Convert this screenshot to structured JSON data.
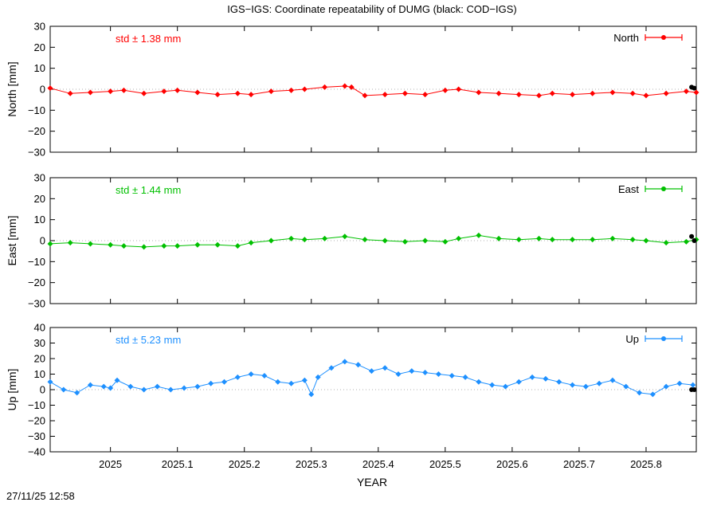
{
  "title": "IGS−IGS: Coordinate repeatability of DUMG (black: COD−IGS)",
  "timestamp": "27/11/25 12:58",
  "chart_data": [
    {
      "type": "scatter",
      "component": "North",
      "ylabel": "North [mm]",
      "xlabel": "",
      "std_label": "std ± 1.38 mm",
      "legend": "North",
      "legend_placement": "top-right",
      "color": "#ff0000",
      "ylim": [
        -30,
        30
      ],
      "yticks": [
        -30,
        -20,
        -10,
        0,
        10,
        20,
        30
      ],
      "ytick_labels": [
        "−30",
        "−20",
        "−10",
        "0",
        "10",
        "20",
        "30"
      ],
      "xlim": [
        2024.91,
        2025.875
      ],
      "zero_line": true,
      "series": [
        {
          "x": [
            2024.91,
            2024.94,
            2024.97,
            2025.0,
            2025.02,
            2025.05,
            2025.08,
            2025.1,
            2025.13,
            2025.16,
            2025.19,
            2025.21,
            2025.24,
            2025.27,
            2025.29,
            2025.32,
            2025.35,
            2025.36,
            2025.38,
            2025.41,
            2025.44,
            2025.47,
            2025.5,
            2025.52,
            2025.55,
            2025.58,
            2025.61,
            2025.64,
            2025.66,
            2025.69,
            2025.72,
            2025.75,
            2025.78,
            2025.8,
            2025.83,
            2025.86,
            2025.875
          ],
          "y": [
            0.5,
            -2,
            -1.5,
            -1,
            -0.5,
            -2,
            -1,
            -0.5,
            -1.5,
            -2.5,
            -2,
            -2.5,
            -1,
            -0.5,
            0,
            1,
            1.5,
            1,
            -3,
            -2.5,
            -2,
            -2.5,
            -0.5,
            0,
            -1.5,
            -2,
            -2.5,
            -3,
            -2,
            -2.5,
            -2,
            -1.5,
            -2,
            -3,
            -2,
            -1,
            -1.5
          ]
        }
      ],
      "black_points": {
        "x": [
          2025.868,
          2025.872
        ],
        "y": [
          1,
          0.5
        ]
      }
    },
    {
      "type": "scatter",
      "component": "East",
      "ylabel": "East [mm]",
      "xlabel": "",
      "std_label": "std ± 1.44 mm",
      "legend": "East",
      "legend_placement": "top-right",
      "color": "#00c000",
      "ylim": [
        -30,
        30
      ],
      "yticks": [
        -30,
        -20,
        -10,
        0,
        10,
        20,
        30
      ],
      "ytick_labels": [
        "−30",
        "−20",
        "−10",
        "0",
        "10",
        "20",
        "30"
      ],
      "xlim": [
        2024.91,
        2025.875
      ],
      "zero_line": true,
      "series": [
        {
          "x": [
            2024.91,
            2024.94,
            2024.97,
            2025.0,
            2025.02,
            2025.05,
            2025.08,
            2025.1,
            2025.13,
            2025.16,
            2025.19,
            2025.21,
            2025.24,
            2025.27,
            2025.29,
            2025.32,
            2025.35,
            2025.38,
            2025.41,
            2025.44,
            2025.47,
            2025.5,
            2025.52,
            2025.55,
            2025.58,
            2025.61,
            2025.64,
            2025.66,
            2025.69,
            2025.72,
            2025.75,
            2025.78,
            2025.8,
            2025.83,
            2025.86,
            2025.875
          ],
          "y": [
            -1.5,
            -1,
            -1.5,
            -2,
            -2.5,
            -3,
            -2.5,
            -2.5,
            -2,
            -2,
            -2.5,
            -1,
            0,
            1,
            0.5,
            1,
            2,
            0.5,
            0,
            -0.5,
            0,
            -0.5,
            1,
            2.5,
            1,
            0.5,
            1,
            0.5,
            0.5,
            0.5,
            1,
            0.5,
            0,
            -1,
            -0.5,
            0.5
          ]
        }
      ],
      "black_points": {
        "x": [
          2025.868,
          2025.872
        ],
        "y": [
          2,
          0
        ]
      }
    },
    {
      "type": "scatter",
      "component": "Up",
      "ylabel": "Up [mm]",
      "xlabel": "YEAR",
      "std_label": "std ± 5.23 mm",
      "legend": "Up",
      "legend_placement": "top-right",
      "color": "#1e90ff",
      "ylim": [
        -40,
        40
      ],
      "yticks": [
        -40,
        -30,
        -20,
        -10,
        0,
        10,
        20,
        30,
        40
      ],
      "ytick_labels": [
        "−40",
        "−30",
        "−20",
        "−10",
        "0",
        "10",
        "20",
        "30",
        "40"
      ],
      "xlim": [
        2024.91,
        2025.875
      ],
      "xticks": [
        2025.0,
        2025.1,
        2025.2,
        2025.3,
        2025.4,
        2025.5,
        2025.6,
        2025.7,
        2025.8
      ],
      "xtick_labels": [
        "2025",
        "2025.1",
        "2025.2",
        "2025.3",
        "2025.4",
        "2025.5",
        "2025.6",
        "2025.7",
        "2025.8"
      ],
      "zero_line": true,
      "series": [
        {
          "x": [
            2024.91,
            2024.93,
            2024.95,
            2024.97,
            2024.99,
            2025.0,
            2025.01,
            2025.03,
            2025.05,
            2025.07,
            2025.09,
            2025.11,
            2025.13,
            2025.15,
            2025.17,
            2025.19,
            2025.21,
            2025.23,
            2025.25,
            2025.27,
            2025.29,
            2025.3,
            2025.31,
            2025.33,
            2025.35,
            2025.37,
            2025.39,
            2025.41,
            2025.43,
            2025.45,
            2025.47,
            2025.49,
            2025.51,
            2025.53,
            2025.55,
            2025.57,
            2025.59,
            2025.61,
            2025.63,
            2025.65,
            2025.67,
            2025.69,
            2025.71,
            2025.73,
            2025.75,
            2025.77,
            2025.79,
            2025.81,
            2025.83,
            2025.85,
            2025.87
          ],
          "y": [
            5,
            0,
            -2,
            3,
            2,
            1,
            6,
            2,
            0,
            2,
            0,
            1,
            2,
            4,
            5,
            8,
            10,
            9,
            5,
            4,
            6,
            -3,
            8,
            14,
            18,
            16,
            12,
            14,
            10,
            12,
            11,
            10,
            9,
            8,
            5,
            3,
            2,
            5,
            8,
            7,
            5,
            3,
            2,
            4,
            6,
            2,
            -2,
            -3,
            2,
            4,
            3
          ]
        }
      ],
      "black_points": {
        "x": [
          2025.868,
          2025.872
        ],
        "y": [
          0,
          0
        ]
      }
    }
  ]
}
